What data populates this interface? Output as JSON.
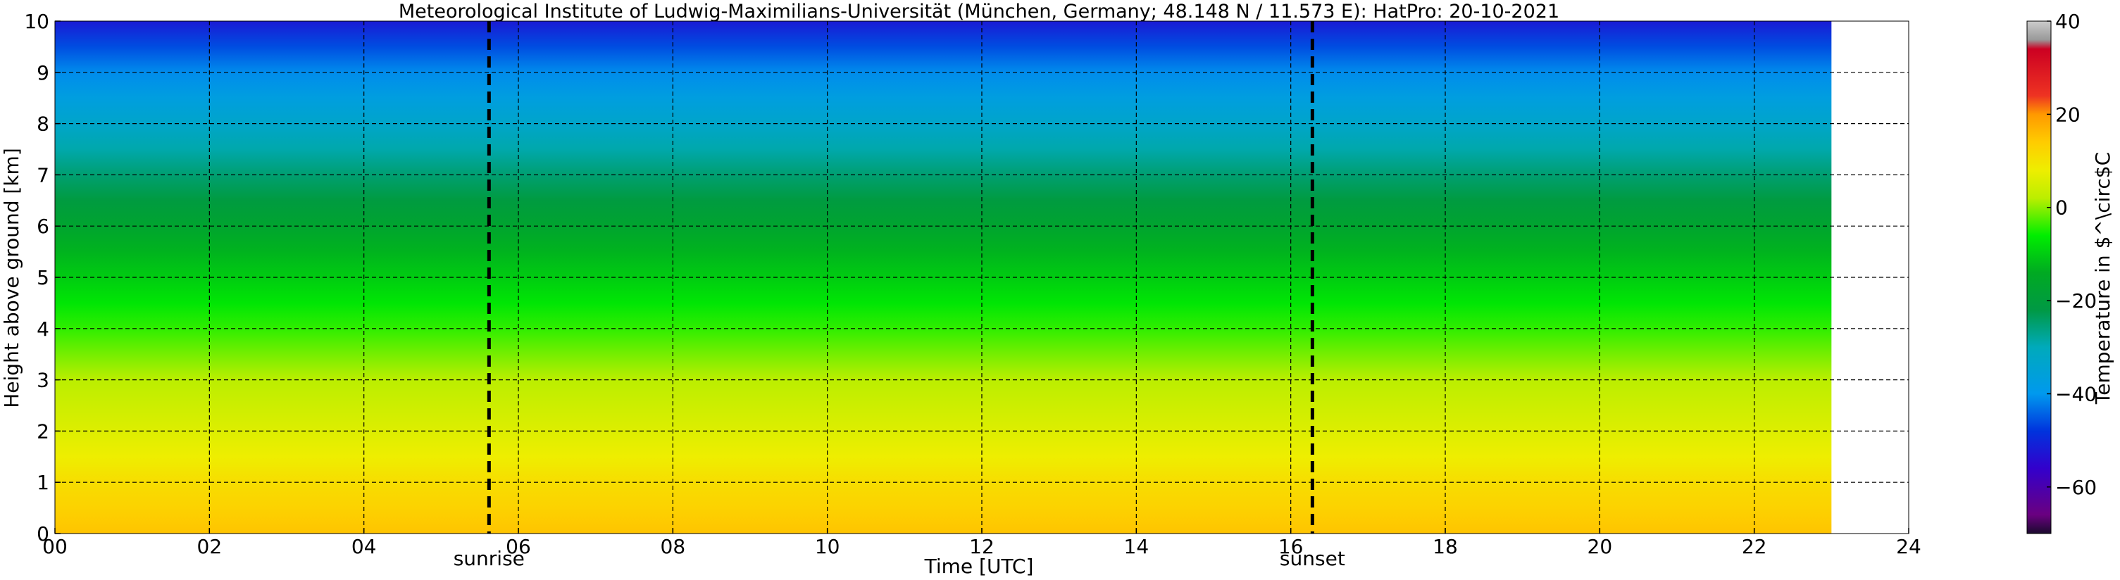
{
  "chart_data": {
    "type": "heatmap",
    "title": "Meteorological Institute of Ludwig-Maximilians-Universität (München, Germany; 48.148 N / 11.573 E):    HatPro: 20-10-2021",
    "xlabel": "Time [UTC]",
    "ylabel": "Height above ground [km]",
    "xlim": [
      0,
      24
    ],
    "ylim": [
      0,
      10
    ],
    "data_end_hour": 23,
    "x_ticks": [
      {
        "value": 0,
        "label": "00"
      },
      {
        "value": 2,
        "label": "02"
      },
      {
        "value": 4,
        "label": "04"
      },
      {
        "value": 6,
        "label": "06"
      },
      {
        "value": 8,
        "label": "08"
      },
      {
        "value": 10,
        "label": "10"
      },
      {
        "value": 12,
        "label": "12"
      },
      {
        "value": 14,
        "label": "14"
      },
      {
        "value": 16,
        "label": "16"
      },
      {
        "value": 18,
        "label": "18"
      },
      {
        "value": 20,
        "label": "20"
      },
      {
        "value": 22,
        "label": "22"
      },
      {
        "value": 24,
        "label": "24"
      }
    ],
    "y_ticks": [
      0,
      1,
      2,
      3,
      4,
      5,
      6,
      7,
      8,
      9,
      10
    ],
    "grid": true,
    "events": [
      {
        "label": "sunrise",
        "time": 5.62
      },
      {
        "label": "sunset",
        "time": 16.28
      }
    ],
    "temperature_profile": {
      "heights_km": [
        0,
        0.5,
        1,
        1.5,
        2,
        2.5,
        3,
        3.5,
        4,
        4.5,
        5,
        5.5,
        6,
        6.5,
        7,
        7.5,
        8,
        8.5,
        9,
        9.5,
        10
      ],
      "temperature_c": [
        15,
        13,
        11,
        8,
        6,
        4,
        2,
        -1,
        -4,
        -7,
        -10,
        -13,
        -17,
        -21,
        -25,
        -29,
        -33,
        -37,
        -41,
        -46,
        -52
      ]
    },
    "colorbar": {
      "label": "Temperature in $^\\circ$C",
      "min": -70,
      "max": 40,
      "ticks": [
        {
          "value": 40,
          "label": "40"
        },
        {
          "value": 20,
          "label": "20"
        },
        {
          "value": 0,
          "label": "0"
        },
        {
          "value": -20,
          "label": "−20"
        },
        {
          "value": -40,
          "label": "−40"
        },
        {
          "value": -60,
          "label": "−60"
        }
      ],
      "stops": [
        {
          "t": -70,
          "color": "#1a0a2e"
        },
        {
          "t": -66,
          "color": "#6a0080"
        },
        {
          "t": -56,
          "color": "#3300cc"
        },
        {
          "t": -48,
          "color": "#0033dd"
        },
        {
          "t": -40,
          "color": "#0099ee"
        },
        {
          "t": -30,
          "color": "#00aabb"
        },
        {
          "t": -22,
          "color": "#009944"
        },
        {
          "t": -14,
          "color": "#00aa22"
        },
        {
          "t": -6,
          "color": "#00ee00"
        },
        {
          "t": 2,
          "color": "#bbee00"
        },
        {
          "t": 8,
          "color": "#eeee00"
        },
        {
          "t": 14,
          "color": "#ffcc00"
        },
        {
          "t": 20,
          "color": "#ff9900"
        },
        {
          "t": 24,
          "color": "#ee3322"
        },
        {
          "t": 34,
          "color": "#cc0022"
        },
        {
          "t": 36,
          "color": "#999999"
        },
        {
          "t": 40,
          "color": "#cccccc"
        }
      ]
    }
  }
}
